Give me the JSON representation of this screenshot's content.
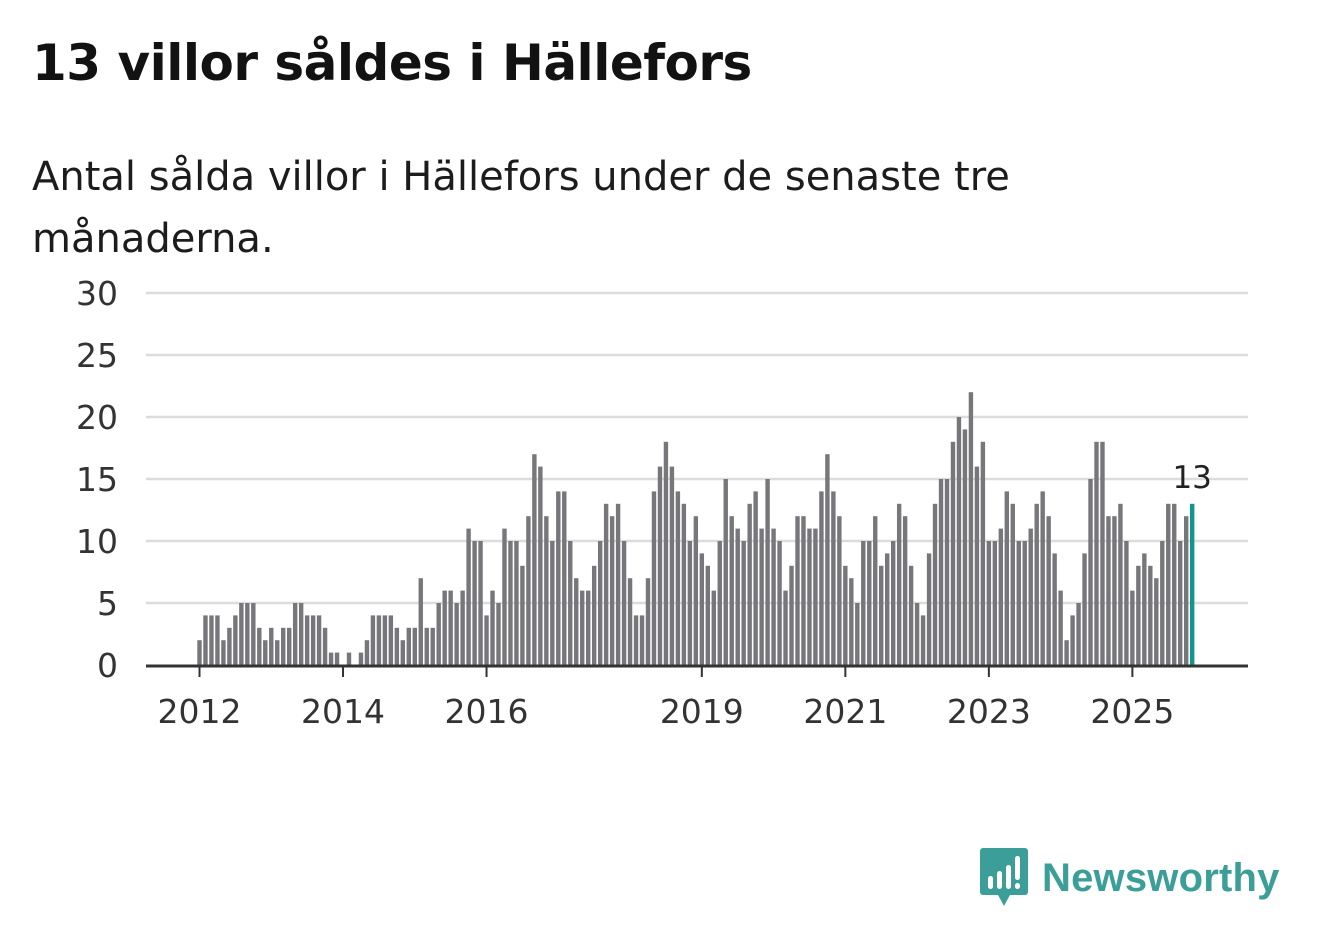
{
  "title": "13 villor såldes i Hällefors",
  "subtitle": "Antal sålda villor i Hällefors under de senaste tre månaderna.",
  "brand": {
    "name": "Newsworthy",
    "icon": "newsworthy-logo-icon",
    "color": "#3c9e99"
  },
  "chart_data": {
    "type": "bar",
    "title": "13 villor såldes i Hällefors",
    "xlabel": "",
    "ylabel": "",
    "ylim": [
      0,
      30
    ],
    "yticks": [
      0,
      5,
      10,
      15,
      20,
      25,
      30
    ],
    "grid": true,
    "bar_color": "#77767b",
    "highlight_color": "#13958f",
    "x_tick_labels": [
      {
        "label": "2012",
        "index": 0
      },
      {
        "label": "2014",
        "index": 24
      },
      {
        "label": "2016",
        "index": 48
      },
      {
        "label": "2019",
        "index": 84
      },
      {
        "label": "2021",
        "index": 108
      },
      {
        "label": "2023",
        "index": 132
      },
      {
        "label": "2025",
        "index": 156
      }
    ],
    "highlight": {
      "index": 166,
      "label": "13"
    },
    "values": [
      2,
      4,
      4,
      4,
      2,
      3,
      4,
      5,
      5,
      5,
      3,
      2,
      3,
      2,
      3,
      3,
      5,
      5,
      4,
      4,
      4,
      3,
      1,
      1,
      0,
      1,
      0,
      1,
      2,
      4,
      4,
      4,
      4,
      3,
      2,
      3,
      3,
      7,
      3,
      3,
      5,
      6,
      6,
      5,
      6,
      11,
      10,
      10,
      4,
      6,
      5,
      11,
      10,
      10,
      8,
      12,
      17,
      16,
      12,
      10,
      14,
      14,
      10,
      7,
      6,
      6,
      8,
      10,
      13,
      12,
      13,
      10,
      7,
      4,
      4,
      7,
      14,
      16,
      18,
      16,
      14,
      13,
      10,
      12,
      9,
      8,
      6,
      10,
      15,
      12,
      11,
      10,
      13,
      14,
      11,
      15,
      11,
      10,
      6,
      8,
      12,
      12,
      11,
      11,
      14,
      17,
      14,
      12,
      8,
      7,
      5,
      10,
      10,
      12,
      8,
      9,
      10,
      13,
      12,
      8,
      5,
      4,
      9,
      13,
      15,
      15,
      18,
      20,
      19,
      22,
      16,
      18,
      10,
      10,
      11,
      14,
      13,
      10,
      10,
      11,
      13,
      14,
      12,
      9,
      6,
      2,
      4,
      5,
      9,
      15,
      18,
      18,
      12,
      12,
      13,
      10,
      6,
      8,
      9,
      8,
      7,
      10,
      13,
      13,
      10,
      12,
      13
    ]
  }
}
